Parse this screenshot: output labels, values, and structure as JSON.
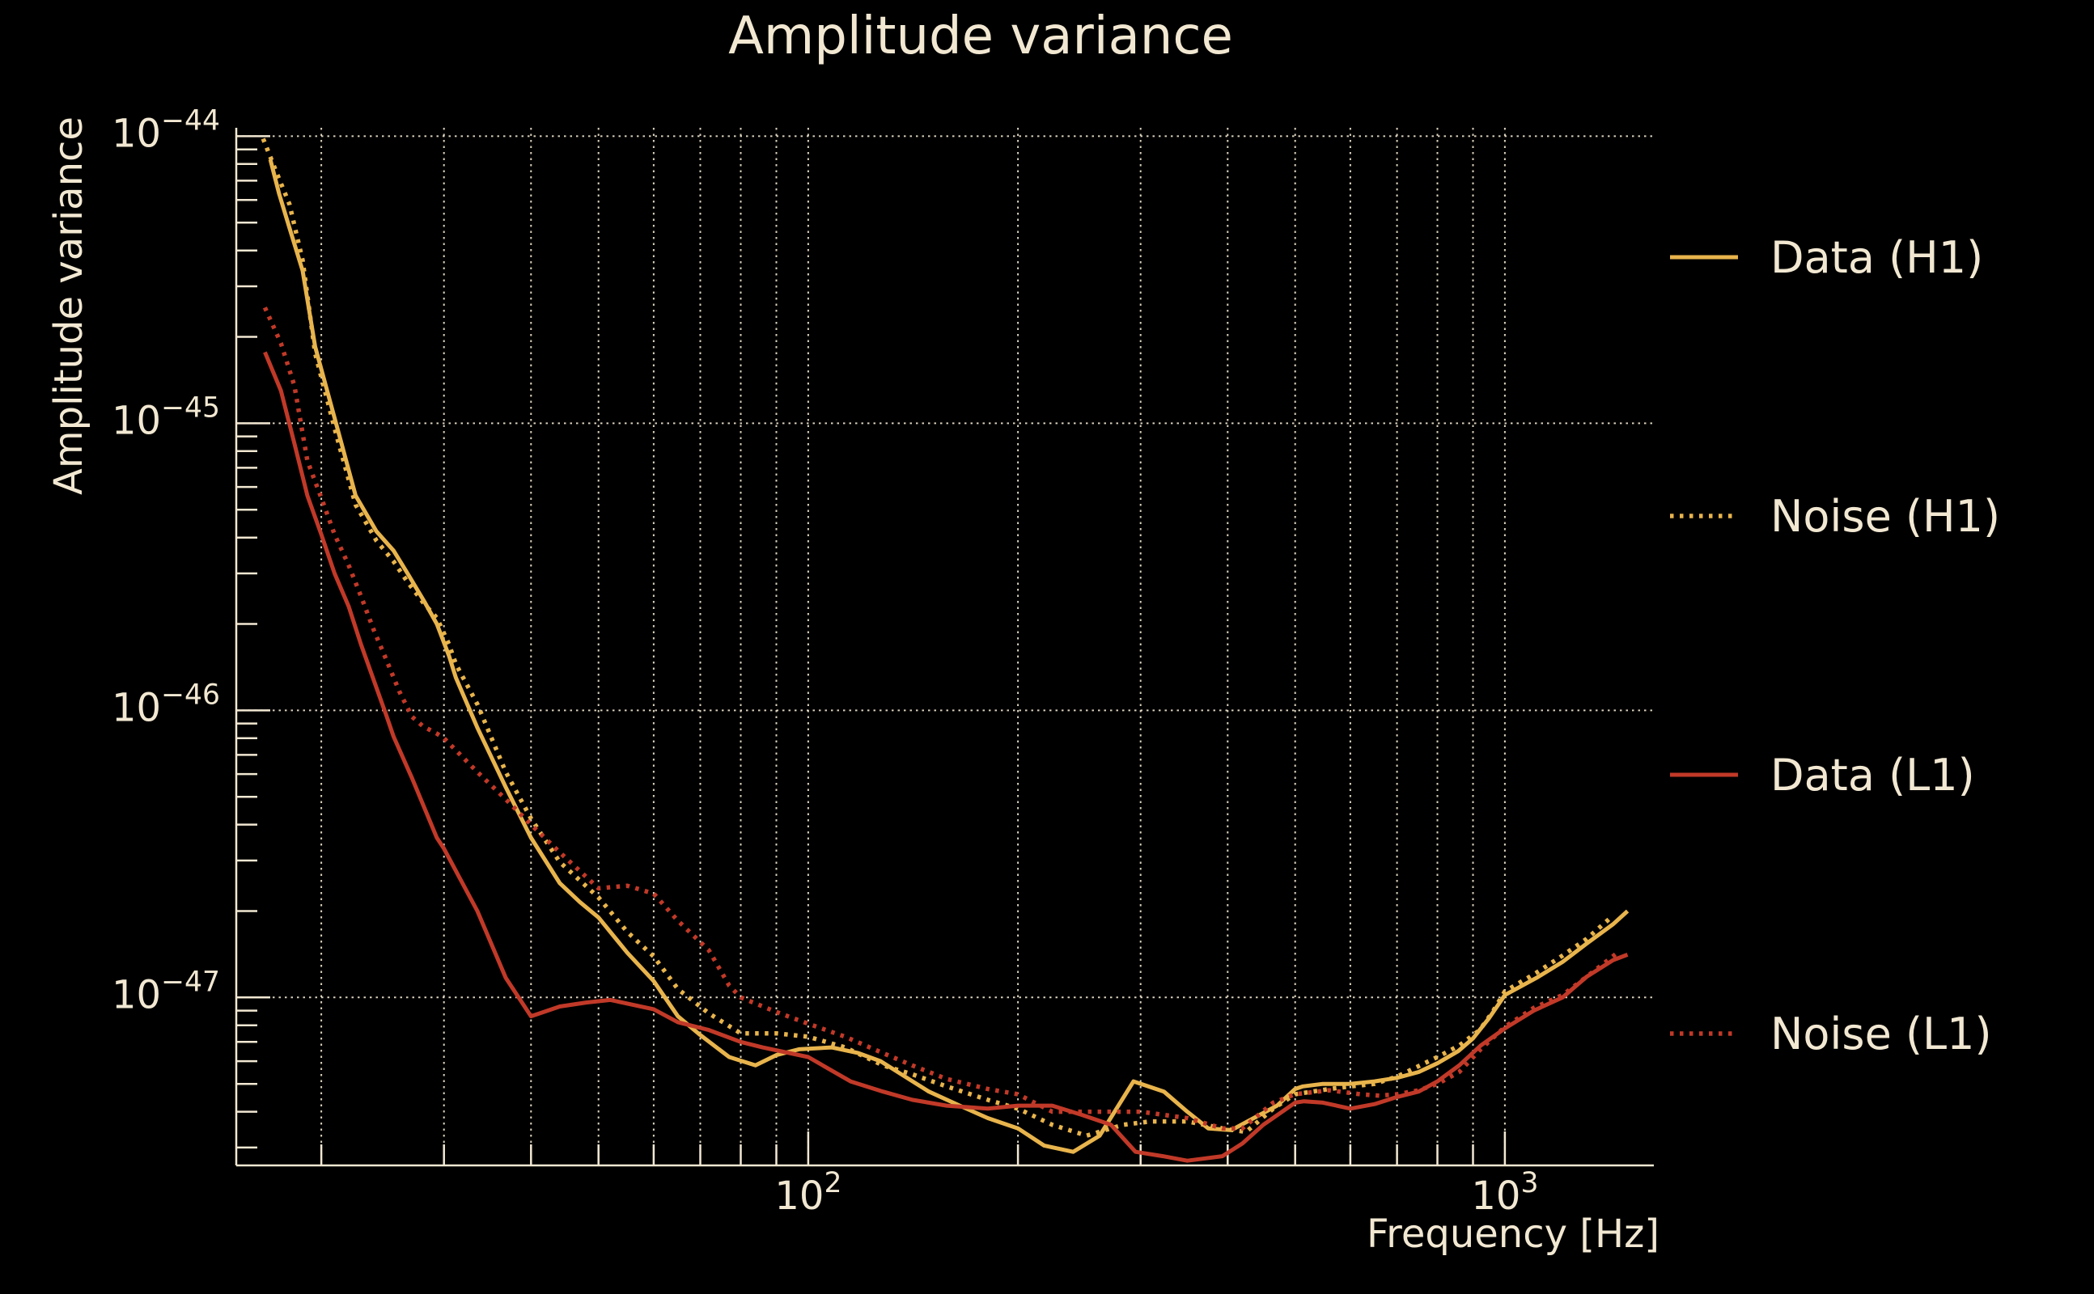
{
  "title": "Amplitude variance",
  "colors": {
    "background": "#000000",
    "text": "#F2E8D2",
    "grid": "#F2E8D2",
    "gold": "#E8B44C",
    "red": "#C13928"
  },
  "axes": {
    "x": {
      "label": "Frequency [Hz]",
      "scale": "log",
      "min": 15.1,
      "max": 1636,
      "gridlines": [
        20,
        30,
        40,
        50,
        60,
        70,
        80,
        90,
        100,
        200,
        300,
        400,
        500,
        600,
        700,
        800,
        900,
        1000
      ],
      "major_ticks": [
        100,
        1000
      ],
      "tick_labels": [
        {
          "base": "10",
          "exp": "2",
          "value": 100
        },
        {
          "base": "10",
          "exp": "3",
          "value": 1000
        }
      ]
    },
    "y": {
      "label": "Amplitude variance",
      "scale": "log",
      "min": 2.6e-48,
      "max": 1.07e-44,
      "gridlines": [
        1e-44,
        1e-45,
        1e-46,
        1e-47
      ],
      "major_ticks": [
        1e-44,
        1e-45,
        1e-46,
        1e-47
      ],
      "tick_labels": [
        {
          "base": "10",
          "exp": "−44",
          "value": 1e-44
        },
        {
          "base": "10",
          "exp": "−45",
          "value": 1e-45
        },
        {
          "base": "10",
          "exp": "−46",
          "value": 1e-46
        },
        {
          "base": "10",
          "exp": "−47",
          "value": 1e-47
        }
      ]
    }
  },
  "chart_data": {
    "type": "line",
    "title": "Amplitude variance",
    "xlabel": "Frequency [Hz]",
    "ylabel": "Amplitude variance",
    "xscale": "log",
    "yscale": "log",
    "xlim": [
      15.1,
      1636
    ],
    "ylim": [
      2.6e-48,
      1.07e-44
    ],
    "grid": true,
    "legend_position": "right",
    "series": [
      {
        "name": "Data (H1)",
        "id": "data_h1",
        "color": "#E8B44C",
        "line_style": "solid",
        "points": [
          [
            16.9,
            8.3e-45
          ],
          [
            17.4,
            6.3e-45
          ],
          [
            18.0,
            4.8e-45
          ],
          [
            18.8,
            3.4e-45
          ],
          [
            19.6,
            1.85e-45
          ],
          [
            21.0,
            1e-45
          ],
          [
            22.4,
            5.6e-46
          ],
          [
            24.0,
            4.2e-46
          ],
          [
            25.4,
            3.6e-46
          ],
          [
            26.6,
            3e-46
          ],
          [
            28.1,
            2.4e-46
          ],
          [
            29.3,
            2e-46
          ],
          [
            30.5,
            1.55e-46
          ],
          [
            31.2,
            1.3e-46
          ],
          [
            33.5,
            8.7e-47
          ],
          [
            36.8,
            5.4e-47
          ],
          [
            40,
            3.6e-47
          ],
          [
            44,
            2.5e-47
          ],
          [
            47,
            2.15e-47
          ],
          [
            50,
            1.9e-47
          ],
          [
            55,
            1.43e-47
          ],
          [
            60,
            1.14e-47
          ],
          [
            65,
            8.6e-48
          ],
          [
            70,
            7.4e-48
          ],
          [
            77,
            6.2e-48
          ],
          [
            84,
            5.8e-48
          ],
          [
            90,
            6.3e-48
          ],
          [
            97,
            6.6e-48
          ],
          [
            108,
            6.7e-48
          ],
          [
            118,
            6.4e-48
          ],
          [
            127,
            6e-48
          ],
          [
            136,
            5.4e-48
          ],
          [
            149,
            4.7e-48
          ],
          [
            165,
            4.2e-48
          ],
          [
            181,
            3.8e-48
          ],
          [
            200,
            3.5e-48
          ],
          [
            218,
            3.05e-48
          ],
          [
            240,
            2.9e-48
          ],
          [
            262,
            3.3e-48
          ],
          [
            293,
            5.1e-48
          ],
          [
            324,
            4.7e-48
          ],
          [
            350,
            4e-48
          ],
          [
            375,
            3.5e-48
          ],
          [
            405,
            3.45e-48
          ],
          [
            436,
            3.8e-48
          ],
          [
            471,
            4.2e-48
          ],
          [
            500,
            4.8e-48
          ],
          [
            513,
            4.9e-48
          ],
          [
            548,
            5e-48
          ],
          [
            600,
            5e-48
          ],
          [
            650,
            5.1e-48
          ],
          [
            700,
            5.25e-48
          ],
          [
            752,
            5.5e-48
          ],
          [
            800,
            5.9e-48
          ],
          [
            857,
            6.5e-48
          ],
          [
            900,
            7.2e-48
          ],
          [
            950,
            8.5e-48
          ],
          [
            1000,
            1.02e-47
          ],
          [
            1110,
            1.17e-47
          ],
          [
            1210,
            1.33e-47
          ],
          [
            1310,
            1.54e-47
          ],
          [
            1430,
            1.8e-47
          ],
          [
            1500,
            2e-47
          ]
        ]
      },
      {
        "name": "Noise (H1)",
        "id": "noise_h1",
        "color": "#E8B44C",
        "line_style": "dotted",
        "points": [
          [
            16.5,
            9.8e-45
          ],
          [
            17.2,
            7.6e-45
          ],
          [
            18.0,
            5.8e-45
          ],
          [
            18.8,
            3.7e-45
          ],
          [
            19.6,
            1.75e-45
          ],
          [
            21.0,
            9.2e-46
          ],
          [
            22.4,
            5.2e-46
          ],
          [
            24.0,
            3.9e-46
          ],
          [
            25.4,
            3.3e-46
          ],
          [
            26.6,
            2.8e-46
          ],
          [
            28.1,
            2.35e-46
          ],
          [
            29.3,
            2.1e-46
          ],
          [
            30.5,
            1.7e-46
          ],
          [
            31.2,
            1.45e-46
          ],
          [
            33.5,
            1.05e-46
          ],
          [
            36.8,
            6.1e-47
          ],
          [
            40,
            4.2e-47
          ],
          [
            44,
            2.96e-47
          ],
          [
            50,
            2.23e-47
          ],
          [
            55,
            1.69e-47
          ],
          [
            60,
            1.39e-47
          ],
          [
            65,
            1.07e-47
          ],
          [
            72,
            8.8e-48
          ],
          [
            80,
            7.5e-48
          ],
          [
            90,
            7.5e-48
          ],
          [
            100,
            7.3e-48
          ],
          [
            113,
            6.7e-48
          ],
          [
            128,
            5.8e-48
          ],
          [
            141,
            5.4e-48
          ],
          [
            158,
            4.9e-48
          ],
          [
            181,
            4.4e-48
          ],
          [
            200,
            4.1e-48
          ],
          [
            224,
            3.6e-48
          ],
          [
            251,
            3.3e-48
          ],
          [
            283,
            3.6e-48
          ],
          [
            310,
            3.7e-48
          ],
          [
            350,
            3.7e-48
          ],
          [
            393,
            3.5e-48
          ],
          [
            425,
            3.4e-48
          ],
          [
            465,
            4.1e-48
          ],
          [
            500,
            4.6e-48
          ],
          [
            560,
            4.8e-48
          ],
          [
            600,
            4.9e-48
          ],
          [
            650,
            5e-48
          ],
          [
            700,
            5.3e-48
          ],
          [
            800,
            6.2e-48
          ],
          [
            860,
            6.8e-48
          ],
          [
            920,
            7.7e-48
          ],
          [
            960,
            8.9e-48
          ],
          [
            1000,
            1.05e-47
          ],
          [
            1110,
            1.22e-47
          ],
          [
            1210,
            1.4e-47
          ],
          [
            1310,
            1.6e-47
          ],
          [
            1430,
            1.93e-47
          ]
        ]
      },
      {
        "name": "Data (L1)",
        "id": "data_l1",
        "color": "#C13928",
        "line_style": "solid",
        "points": [
          [
            16.6,
            1.77e-45
          ],
          [
            17.5,
            1.3e-45
          ],
          [
            18.3,
            8.5e-46
          ],
          [
            19.1,
            5.6e-46
          ],
          [
            20.0,
            4.1e-46
          ],
          [
            20.9,
            3e-46
          ],
          [
            21.9,
            2.3e-46
          ],
          [
            22.8,
            1.7e-46
          ],
          [
            23.8,
            1.27e-46
          ],
          [
            24.8,
            9.6e-47
          ],
          [
            25.4,
            8.1e-47
          ],
          [
            27.0,
            5.8e-47
          ],
          [
            29.3,
            3.6e-47
          ],
          [
            30.0,
            3.3e-47
          ],
          [
            33.5,
            2e-47
          ],
          [
            36.8,
            1.17e-47
          ],
          [
            40,
            8.6e-48
          ],
          [
            44,
            9.3e-48
          ],
          [
            48,
            9.6e-48
          ],
          [
            52,
            9.8e-48
          ],
          [
            60,
            9.1e-48
          ],
          [
            65,
            8.2e-48
          ],
          [
            72,
            7.7e-48
          ],
          [
            80,
            7e-48
          ],
          [
            86,
            6.7e-48
          ],
          [
            100,
            6.2e-48
          ],
          [
            115,
            5.1e-48
          ],
          [
            128,
            4.7e-48
          ],
          [
            141,
            4.4e-48
          ],
          [
            158,
            4.2e-48
          ],
          [
            181,
            4.1e-48
          ],
          [
            200,
            4.2e-48
          ],
          [
            224,
            4.2e-48
          ],
          [
            247,
            3.9e-48
          ],
          [
            272,
            3.6e-48
          ],
          [
            295,
            2.9e-48
          ],
          [
            323,
            2.8e-48
          ],
          [
            350,
            2.7e-48
          ],
          [
            393,
            2.8e-48
          ],
          [
            420,
            3.1e-48
          ],
          [
            450,
            3.6e-48
          ],
          [
            500,
            4.3e-48
          ],
          [
            515,
            4.35e-48
          ],
          [
            548,
            4.3e-48
          ],
          [
            600,
            4.1e-48
          ],
          [
            650,
            4.25e-48
          ],
          [
            700,
            4.5e-48
          ],
          [
            752,
            4.7e-48
          ],
          [
            800,
            5.1e-48
          ],
          [
            860,
            5.8e-48
          ],
          [
            923,
            6.8e-48
          ],
          [
            1000,
            7.8e-48
          ],
          [
            1100,
            9e-48
          ],
          [
            1210,
            1e-47
          ],
          [
            1310,
            1.18e-47
          ],
          [
            1430,
            1.35e-47
          ],
          [
            1500,
            1.41e-47
          ]
        ]
      },
      {
        "name": "Noise (L1)",
        "id": "noise_l1",
        "color": "#C13928",
        "line_style": "dotted",
        "points": [
          [
            16.6,
            2.53e-45
          ],
          [
            17.5,
            1.9e-45
          ],
          [
            18.3,
            1.35e-45
          ],
          [
            19.1,
            7.4e-46
          ],
          [
            20.0,
            5.5e-46
          ],
          [
            20.9,
            4.1e-46
          ],
          [
            21.9,
            3.2e-46
          ],
          [
            22.8,
            2.5e-46
          ],
          [
            23.8,
            1.9e-46
          ],
          [
            24.8,
            1.5e-46
          ],
          [
            25.9,
            1.16e-46
          ],
          [
            27.0,
            9.5e-47
          ],
          [
            28.0,
            8.8e-47
          ],
          [
            29.3,
            8.3e-47
          ],
          [
            30.0,
            8e-47
          ],
          [
            33.5,
            6.1e-47
          ],
          [
            36.8,
            4.9e-47
          ],
          [
            40,
            4e-47
          ],
          [
            44,
            3.2e-47
          ],
          [
            50,
            2.4e-47
          ],
          [
            55,
            2.45e-47
          ],
          [
            60,
            2.3e-47
          ],
          [
            65,
            1.85e-47
          ],
          [
            72,
            1.46e-47
          ],
          [
            77,
            1.1e-47
          ],
          [
            80,
            1e-47
          ],
          [
            90,
            8.9e-48
          ],
          [
            100,
            8.1e-48
          ],
          [
            113,
            7.3e-48
          ],
          [
            128,
            6.4e-48
          ],
          [
            141,
            5.8e-48
          ],
          [
            158,
            5.2e-48
          ],
          [
            181,
            4.8e-48
          ],
          [
            200,
            4.6e-48
          ],
          [
            224,
            4e-48
          ],
          [
            270,
            4e-48
          ],
          [
            300,
            4e-48
          ],
          [
            350,
            3.8e-48
          ],
          [
            393,
            3.5e-48
          ],
          [
            420,
            3.5e-48
          ],
          [
            465,
            4.3e-48
          ],
          [
            500,
            4.6e-48
          ],
          [
            560,
            4.75e-48
          ],
          [
            620,
            4.6e-48
          ],
          [
            660,
            4.55e-48
          ],
          [
            700,
            4.6e-48
          ],
          [
            752,
            4.75e-48
          ],
          [
            800,
            5e-48
          ],
          [
            860,
            5.5e-48
          ],
          [
            923,
            6.6e-48
          ],
          [
            1000,
            7.9e-48
          ],
          [
            1100,
            9.2e-48
          ],
          [
            1210,
            1.02e-47
          ],
          [
            1310,
            1.18e-47
          ],
          [
            1455,
            1.44e-47
          ]
        ]
      }
    ]
  }
}
